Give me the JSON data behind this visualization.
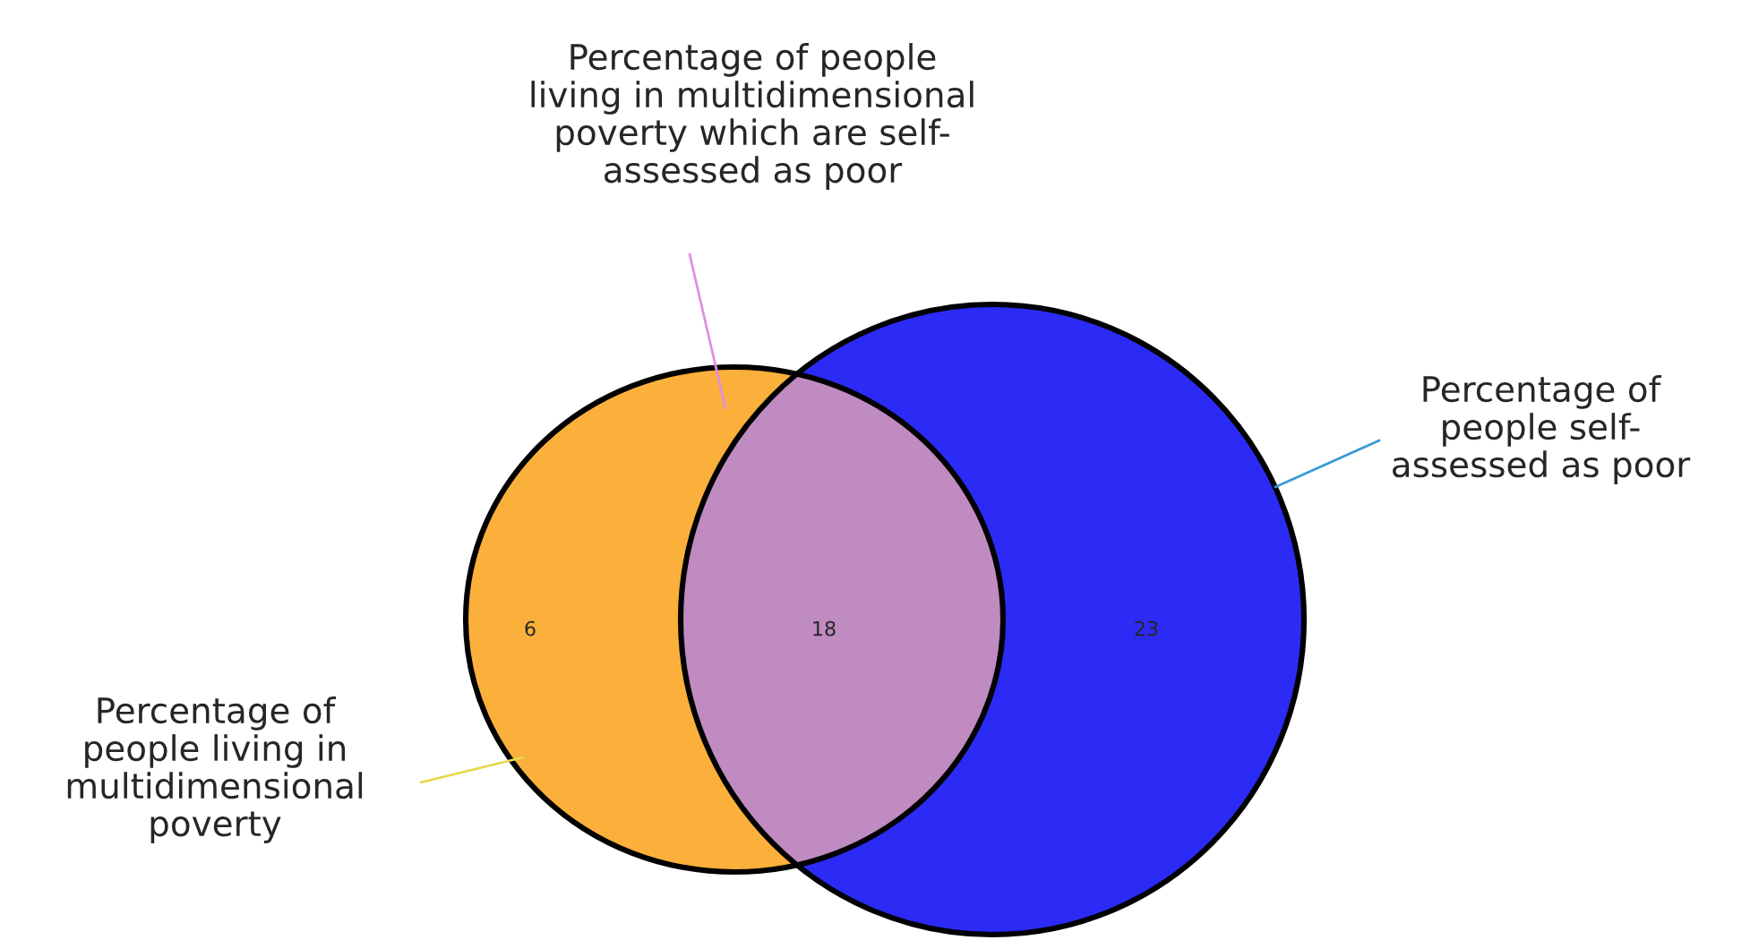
{
  "chart_data": {
    "type": "other",
    "categories": [
      "Percentage of\npeople living in\nmultidimensional\npoverty",
      "Percentage of\npeople self-\nassessed as poor",
      "Percentage of people\nliving in multidimensional\npoverty which are self-\nassessed as poor"
    ],
    "values": [
      6,
      23,
      18
    ],
    "data_labels": true,
    "colors": [
      "#fbb03b",
      "#2b2bf5",
      "#c08bc0"
    ]
  }
}
